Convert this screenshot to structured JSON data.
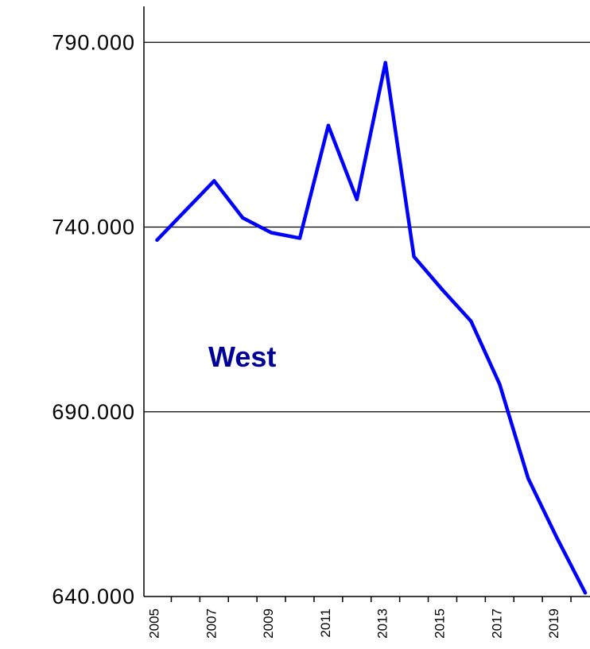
{
  "chart_data": {
    "type": "line",
    "x": [
      2005,
      2006,
      2007,
      2008,
      2009,
      2010,
      2011,
      2012,
      2013,
      2014,
      2015,
      2016,
      2017,
      2018,
      2019,
      2020
    ],
    "series": [
      {
        "values": [
          736.5,
          744.5,
          752.5,
          742.5,
          738.5,
          737.0,
          767.5,
          747.5,
          784.5,
          732.0,
          723.0,
          714.5,
          697.5,
          672.0,
          656.0,
          641.0
        ],
        "color": "#0000ff"
      }
    ],
    "x_tick_labels": [
      "2005",
      "2007",
      "2009",
      "2011",
      "2013",
      "2015",
      "2017",
      "2019"
    ],
    "y_ticks": [
      640,
      690,
      740,
      790
    ],
    "y_tick_labels": [
      "640.000",
      "690.000",
      "740.000",
      "790.000"
    ],
    "ylim": [
      640,
      795
    ],
    "grid": "horizontal",
    "annotation": {
      "text": "West",
      "color": "#000099"
    },
    "title": "",
    "xlabel": "",
    "ylabel": ""
  }
}
